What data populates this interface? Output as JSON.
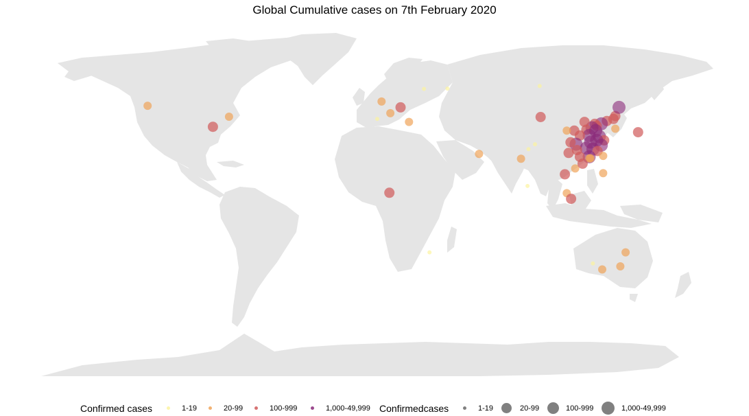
{
  "title": "Global Cumulative cases on 7th February 2020",
  "colors": {
    "land": "#e5e5e5",
    "background": "#ffffff",
    "size_legend_key": "#555555"
  },
  "legend": {
    "color_title": "Confirmed cases",
    "size_title": "Confirmedcases",
    "categories": [
      {
        "label": "1-19",
        "color": "#fcf3a0"
      },
      {
        "label": "20-99",
        "color": "#f0a45a"
      },
      {
        "label": "100-999",
        "color": "#d05a5a"
      },
      {
        "label": "1,000-49,999",
        "color": "#8a2a7a"
      }
    ]
  },
  "chart_data": {
    "type": "scatter",
    "title": "Global Cumulative cases on 7th February 2020",
    "projection": "equirectangular",
    "x_unit": "longitude (degrees)",
    "y_unit": "latitude (degrees)",
    "xlim": [
      -180,
      180
    ],
    "ylim": [
      -90,
      84
    ],
    "color_category_legend": [
      "1-19",
      "20-99",
      "100-999",
      "1,000-49,999"
    ],
    "points": [
      {
        "lon": -123.0,
        "lat": 49.3,
        "cat": "20-99"
      },
      {
        "lon": -79.4,
        "lat": 43.7,
        "cat": "20-99"
      },
      {
        "lon": -88.0,
        "lat": 38.5,
        "cat": "100-999"
      },
      {
        "lon": 2.3,
        "lat": 51.5,
        "cat": "20-99"
      },
      {
        "lon": 7.0,
        "lat": 45.5,
        "cat": "20-99"
      },
      {
        "lon": 0.0,
        "lat": 42.5,
        "cat": "1-19"
      },
      {
        "lon": 12.5,
        "lat": 48.5,
        "cat": "100-999"
      },
      {
        "lon": 17.0,
        "lat": 41.0,
        "cat": "20-99"
      },
      {
        "lon": 25.0,
        "lat": 58.0,
        "cat": "1-19"
      },
      {
        "lon": 37.6,
        "lat": 58.2,
        "cat": "1-19"
      },
      {
        "lon": 87.0,
        "lat": 59.5,
        "cat": "1-19"
      },
      {
        "lon": 54.5,
        "lat": 24.5,
        "cat": "20-99"
      },
      {
        "lon": 77.0,
        "lat": 22.0,
        "cat": "20-99"
      },
      {
        "lon": 80.5,
        "lat": 8.0,
        "cat": "1-19"
      },
      {
        "lon": 84.5,
        "lat": 29.5,
        "cat": "1-19"
      },
      {
        "lon": 81.0,
        "lat": 27.0,
        "cat": "1-19"
      },
      {
        "lon": 6.5,
        "lat": 4.5,
        "cat": "100-999"
      },
      {
        "lon": 28.0,
        "lat": -26.2,
        "cat": "1-19"
      },
      {
        "lon": 115.5,
        "lat": -31.9,
        "cat": "1-19"
      },
      {
        "lon": 120.5,
        "lat": -35.0,
        "cat": "20-99"
      },
      {
        "lon": 130.2,
        "lat": -33.4,
        "cat": "20-99"
      },
      {
        "lon": 133.0,
        "lat": -26.2,
        "cat": "20-99"
      },
      {
        "lon": 101.5,
        "lat": 4.3,
        "cat": "20-99"
      },
      {
        "lon": 103.8,
        "lat": 1.4,
        "cat": "100-999"
      },
      {
        "lon": 100.5,
        "lat": 14.0,
        "cat": "100-999"
      },
      {
        "lon": 106.0,
        "lat": 17.0,
        "cat": "20-99"
      },
      {
        "lon": 121.0,
        "lat": 14.6,
        "cat": "20-99"
      },
      {
        "lon": 139.7,
        "lat": 35.7,
        "cat": "100-999"
      },
      {
        "lon": 127.5,
        "lat": 37.5,
        "cat": "20-99"
      },
      {
        "lon": 127.5,
        "lat": 44.0,
        "cat": "100-999"
      },
      {
        "lon": 129.5,
        "lat": 48.5,
        "cat": "1,000-49,999"
      },
      {
        "lon": 126.5,
        "lat": 42.5,
        "cat": "100-999"
      },
      {
        "lon": 123.0,
        "lat": 41.5,
        "cat": "100-999"
      },
      {
        "lon": 120.0,
        "lat": 40.0,
        "cat": "1,000-49,999"
      },
      {
        "lon": 116.5,
        "lat": 40.0,
        "cat": "100-999"
      },
      {
        "lon": 117.5,
        "lat": 39.0,
        "cat": "100-999"
      },
      {
        "lon": 115.0,
        "lat": 38.0,
        "cat": "1,000-49,999"
      },
      {
        "lon": 112.0,
        "lat": 37.0,
        "cat": "100-999"
      },
      {
        "lon": 111.0,
        "lat": 41.0,
        "cat": "100-999"
      },
      {
        "lon": 117.0,
        "lat": 36.5,
        "cat": "1,000-49,999"
      },
      {
        "lon": 119.0,
        "lat": 33.5,
        "cat": "1,000-49,999"
      },
      {
        "lon": 121.5,
        "lat": 31.5,
        "cat": "100-999"
      },
      {
        "lon": 120.0,
        "lat": 29.0,
        "cat": "1,000-49,999"
      },
      {
        "lon": 117.5,
        "lat": 31.5,
        "cat": "1,000-49,999"
      },
      {
        "lon": 114.3,
        "lat": 30.6,
        "cat": "1,000-49,999"
      },
      {
        "lon": 113.5,
        "lat": 34.0,
        "cat": "1,000-49,999"
      },
      {
        "lon": 112.0,
        "lat": 27.5,
        "cat": "1,000-49,999"
      },
      {
        "lon": 115.5,
        "lat": 27.0,
        "cat": "1,000-49,999"
      },
      {
        "lon": 118.0,
        "lat": 26.0,
        "cat": "100-999"
      },
      {
        "lon": 113.5,
        "lat": 23.0,
        "cat": "1,000-49,999"
      },
      {
        "lon": 114.2,
        "lat": 22.3,
        "cat": "20-99"
      },
      {
        "lon": 113.6,
        "lat": 22.2,
        "cat": "20-99"
      },
      {
        "lon": 121.0,
        "lat": 23.5,
        "cat": "20-99"
      },
      {
        "lon": 108.5,
        "lat": 34.0,
        "cat": "100-999"
      },
      {
        "lon": 106.5,
        "lat": 29.5,
        "cat": "1,000-49,999"
      },
      {
        "lon": 103.5,
        "lat": 30.5,
        "cat": "100-999"
      },
      {
        "lon": 105.5,
        "lat": 36.5,
        "cat": "100-999"
      },
      {
        "lon": 101.5,
        "lat": 36.5,
        "cat": "20-99"
      },
      {
        "lon": 107.0,
        "lat": 26.5,
        "cat": "100-999"
      },
      {
        "lon": 108.5,
        "lat": 23.0,
        "cat": "100-999"
      },
      {
        "lon": 102.5,
        "lat": 25.0,
        "cat": "100-999"
      },
      {
        "lon": 110.0,
        "lat": 19.5,
        "cat": "100-999"
      },
      {
        "lon": 87.5,
        "lat": 43.5,
        "cat": "100-999"
      }
    ]
  }
}
